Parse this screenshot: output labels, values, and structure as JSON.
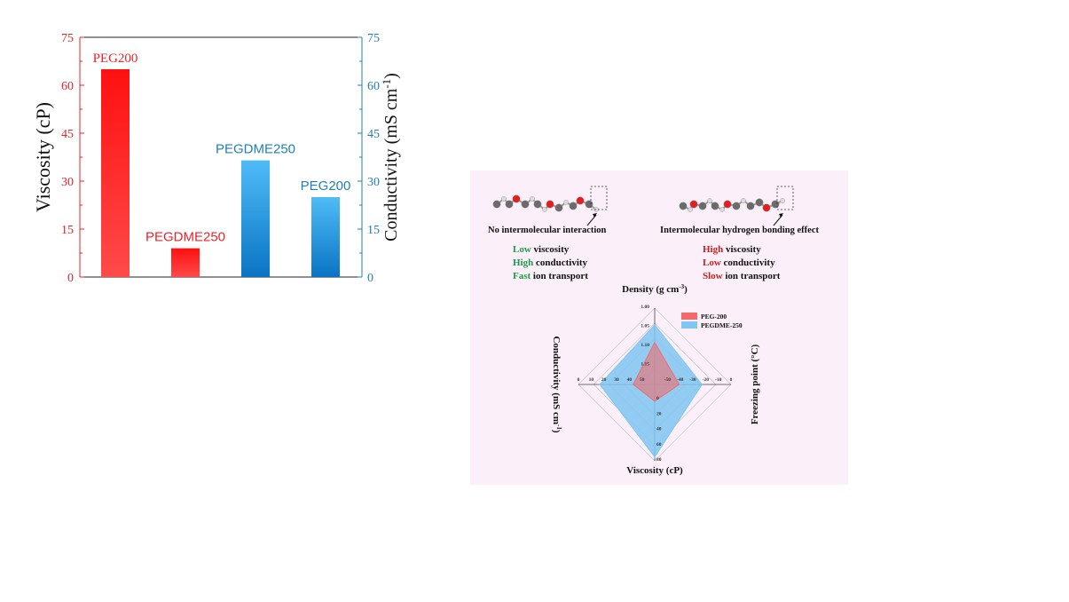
{
  "chart_data": [
    {
      "type": "bar",
      "categories": [
        "PEG200",
        "PEGDME250",
        "PEGDME250",
        "PEG200"
      ],
      "left_axis": {
        "label": "Viscosity (cP)",
        "ticks": [
          "0",
          "15",
          "30",
          "45",
          "60",
          "75"
        ],
        "ylim": [
          0,
          75
        ],
        "color": "#e8232b"
      },
      "right_axis": {
        "label": "Conductivity (mS cm",
        "label_sup": "-1",
        "label_end": ")",
        "ticks": [
          "0",
          "15",
          "30",
          "45",
          "60",
          "75"
        ],
        "ylim": [
          0,
          75
        ],
        "color": "#1f7fb8"
      },
      "series": [
        {
          "axis": "left",
          "bars": [
            {
              "label": "PEG200",
              "value": 65
            },
            {
              "label": "PEGDME250",
              "value": 9
            }
          ],
          "color": "#ff1f1f"
        },
        {
          "axis": "right",
          "bars": [
            {
              "label": "PEGDME250",
              "value": 36.5
            },
            {
              "label": "PEG200",
              "value": 25
            }
          ],
          "color": "#3aa7e8"
        }
      ],
      "label_colors": {
        "viscosity": "#e8232b",
        "conductivity": "#1f7fb8"
      }
    },
    {
      "type": "radar",
      "axes": [
        {
          "name": "Density (g cm",
          "sup": "-3",
          "end": ")",
          "ticks": [
            "1.00",
            "1.05",
            "1.10",
            "1.15"
          ]
        },
        {
          "name": "Freezing point (°C)",
          "ticks": [
            "0",
            "-10",
            "-20",
            "-30",
            "-40",
            "-50"
          ]
        },
        {
          "name": "Viscosity (cP)",
          "ticks": [
            "80",
            "60",
            "40",
            "20",
            "0"
          ]
        },
        {
          "name": "Conductivity (mS cm",
          "sup": "-1",
          "end": ")",
          "ticks": [
            "0",
            "10",
            "20",
            "30",
            "40",
            "50"
          ]
        }
      ],
      "series": [
        {
          "name": "PEG-200",
          "color": "#f26b6b",
          "points": [
            0.55,
            0.32,
            0.22,
            0.28
          ]
        },
        {
          "name": "PEGDME-250",
          "color": "#7fc6f2",
          "points": [
            0.78,
            0.62,
            0.95,
            0.72
          ]
        }
      ]
    }
  ],
  "panel": {
    "left_caption": "No intermolecular interaction",
    "right_caption": "Intermolecular hydrogen bonding effect",
    "left_props": [
      {
        "kw": "Low",
        "rest": " viscosity"
      },
      {
        "kw": "High",
        "rest": " conductivity"
      },
      {
        "kw": "Fast",
        "rest": " ion transport"
      }
    ],
    "right_props": [
      {
        "kw": "High",
        "rest": " viscosity"
      },
      {
        "kw": "Low",
        "rest": " conductivity"
      },
      {
        "kw": "Slow",
        "rest": " ion transport"
      }
    ]
  }
}
